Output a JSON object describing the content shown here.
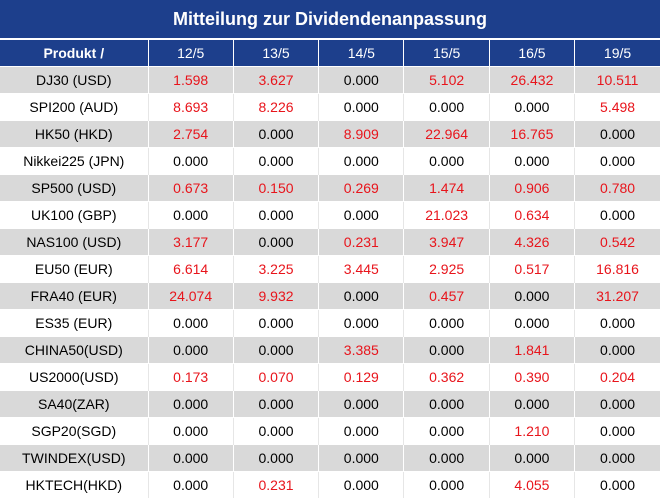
{
  "title": "Mitteilung zur Dividendenanpassung",
  "header": {
    "product_label": "Produkt /",
    "dates": [
      "12/5",
      "13/5",
      "14/5",
      "15/5",
      "16/5",
      "19/5"
    ]
  },
  "colors": {
    "header_bg": "#1d3f8c",
    "header_text": "#ffffff",
    "row_alt": "#d9d9d9",
    "positive_value": "#e8141b",
    "zero_value": "#000000"
  },
  "rows": [
    {
      "product": "DJ30 (USD)",
      "values": [
        "1.598",
        "3.627",
        "0.000",
        "5.102",
        "26.432",
        "10.511"
      ]
    },
    {
      "product": "SPI200 (AUD)",
      "values": [
        "8.693",
        "8.226",
        "0.000",
        "0.000",
        "0.000",
        "5.498"
      ]
    },
    {
      "product": "HK50 (HKD)",
      "values": [
        "2.754",
        "0.000",
        "8.909",
        "22.964",
        "16.765",
        "0.000"
      ]
    },
    {
      "product": "Nikkei225 (JPN)",
      "values": [
        "0.000",
        "0.000",
        "0.000",
        "0.000",
        "0.000",
        "0.000"
      ]
    },
    {
      "product": "SP500 (USD)",
      "values": [
        "0.673",
        "0.150",
        "0.269",
        "1.474",
        "0.906",
        "0.780"
      ]
    },
    {
      "product": "UK100 (GBP)",
      "values": [
        "0.000",
        "0.000",
        "0.000",
        "21.023",
        "0.634",
        "0.000"
      ]
    },
    {
      "product": "NAS100 (USD)",
      "values": [
        "3.177",
        "0.000",
        "0.231",
        "3.947",
        "4.326",
        "0.542"
      ]
    },
    {
      "product": "EU50 (EUR)",
      "values": [
        "6.614",
        "3.225",
        "3.445",
        "2.925",
        "0.517",
        "16.816"
      ]
    },
    {
      "product": "FRA40 (EUR)",
      "values": [
        "24.074",
        "9.932",
        "0.000",
        "0.457",
        "0.000",
        "31.207"
      ]
    },
    {
      "product": "ES35 (EUR)",
      "values": [
        "0.000",
        "0.000",
        "0.000",
        "0.000",
        "0.000",
        "0.000"
      ]
    },
    {
      "product": "CHINA50(USD)",
      "values": [
        "0.000",
        "0.000",
        "3.385",
        "0.000",
        "1.841",
        "0.000"
      ]
    },
    {
      "product": "US2000(USD)",
      "values": [
        "0.173",
        "0.070",
        "0.129",
        "0.362",
        "0.390",
        "0.204"
      ]
    },
    {
      "product": "SA40(ZAR)",
      "values": [
        "0.000",
        "0.000",
        "0.000",
        "0.000",
        "0.000",
        "0.000"
      ]
    },
    {
      "product": "SGP20(SGD)",
      "values": [
        "0.000",
        "0.000",
        "0.000",
        "0.000",
        "1.210",
        "0.000"
      ]
    },
    {
      "product": "TWINDEX(USD)",
      "values": [
        "0.000",
        "0.000",
        "0.000",
        "0.000",
        "0.000",
        "0.000"
      ]
    },
    {
      "product": "HKTECH(HKD)",
      "values": [
        "0.000",
        "0.231",
        "0.000",
        "0.000",
        "4.055",
        "0.000"
      ]
    }
  ]
}
